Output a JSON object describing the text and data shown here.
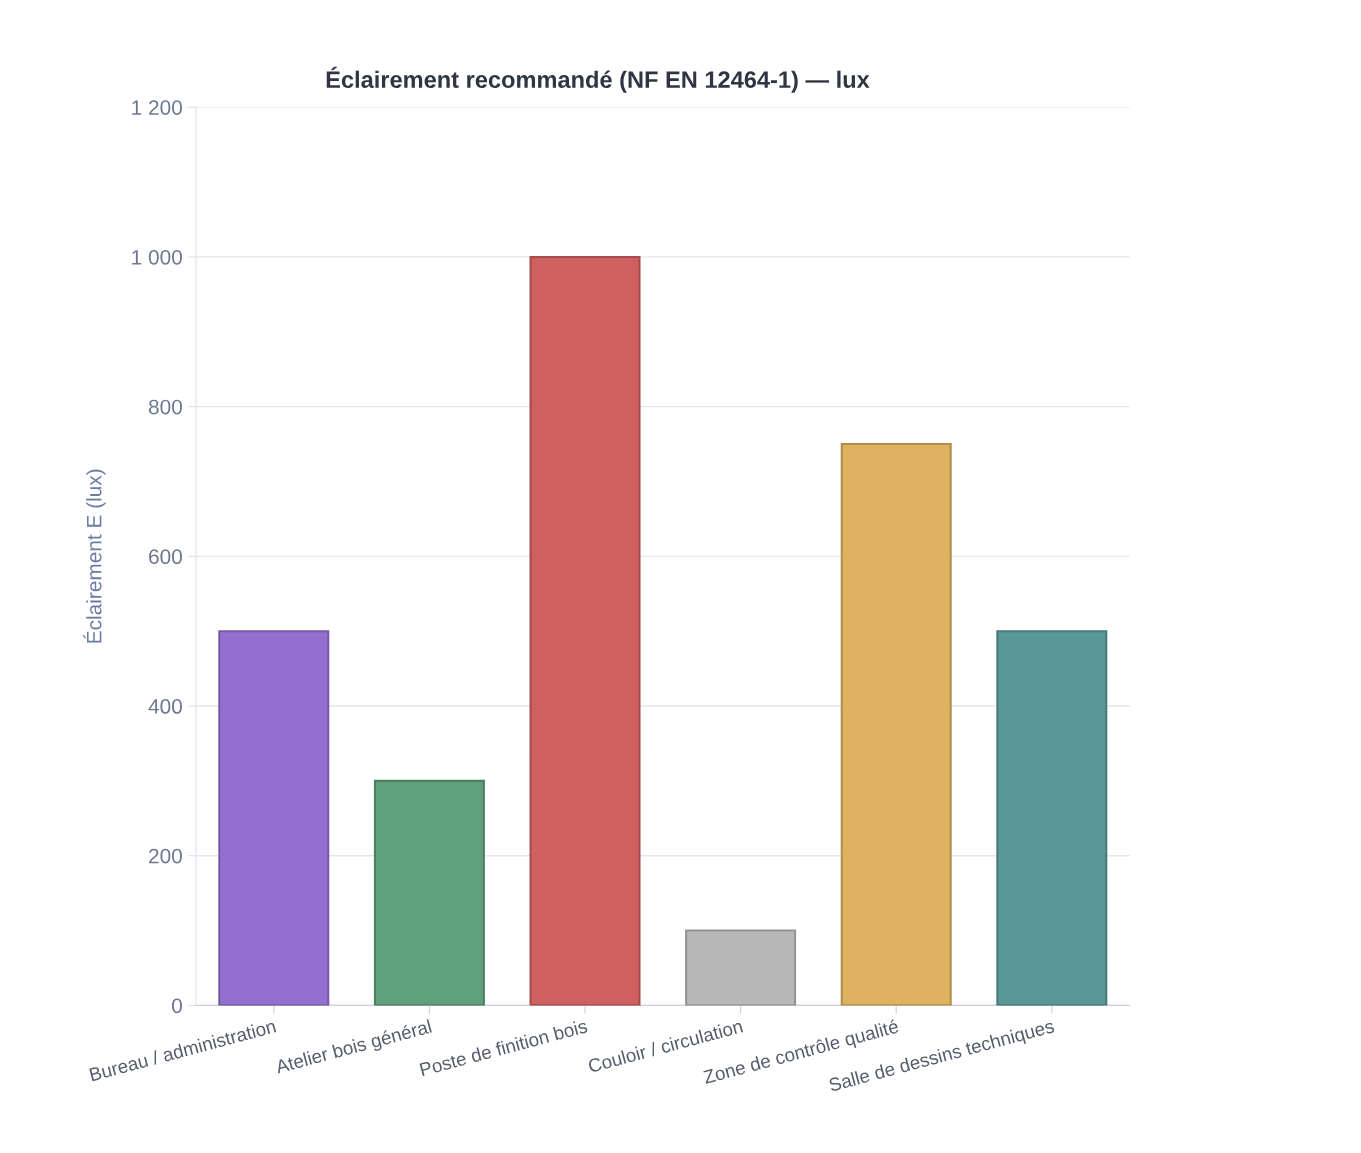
{
  "chart_data": {
    "type": "bar",
    "title": "Éclairement recommandé (NF EN 12464-1) — lux",
    "ylabel": "Éclairement E (lux)",
    "categories": [
      "Bureau / administration",
      "Atelier bois général",
      "Poste de finition bois",
      "Couloir / circulation",
      "Zone de contrôle qualité",
      "Salle de dessins techniques"
    ],
    "values": [
      500,
      300,
      1000,
      100,
      750,
      500
    ],
    "colors": [
      "#9370cf",
      "#60a07c",
      "#d05f5f",
      "#b8b8b8",
      "#dfb261",
      "#5a9898"
    ],
    "ylim": [
      0,
      1200
    ],
    "yticks": [
      0,
      200,
      400,
      600,
      800,
      {
        "value": 1000,
        "label": "1 000"
      },
      {
        "value": 1200,
        "label": "1 200"
      }
    ],
    "grid": "y",
    "legend": false
  }
}
